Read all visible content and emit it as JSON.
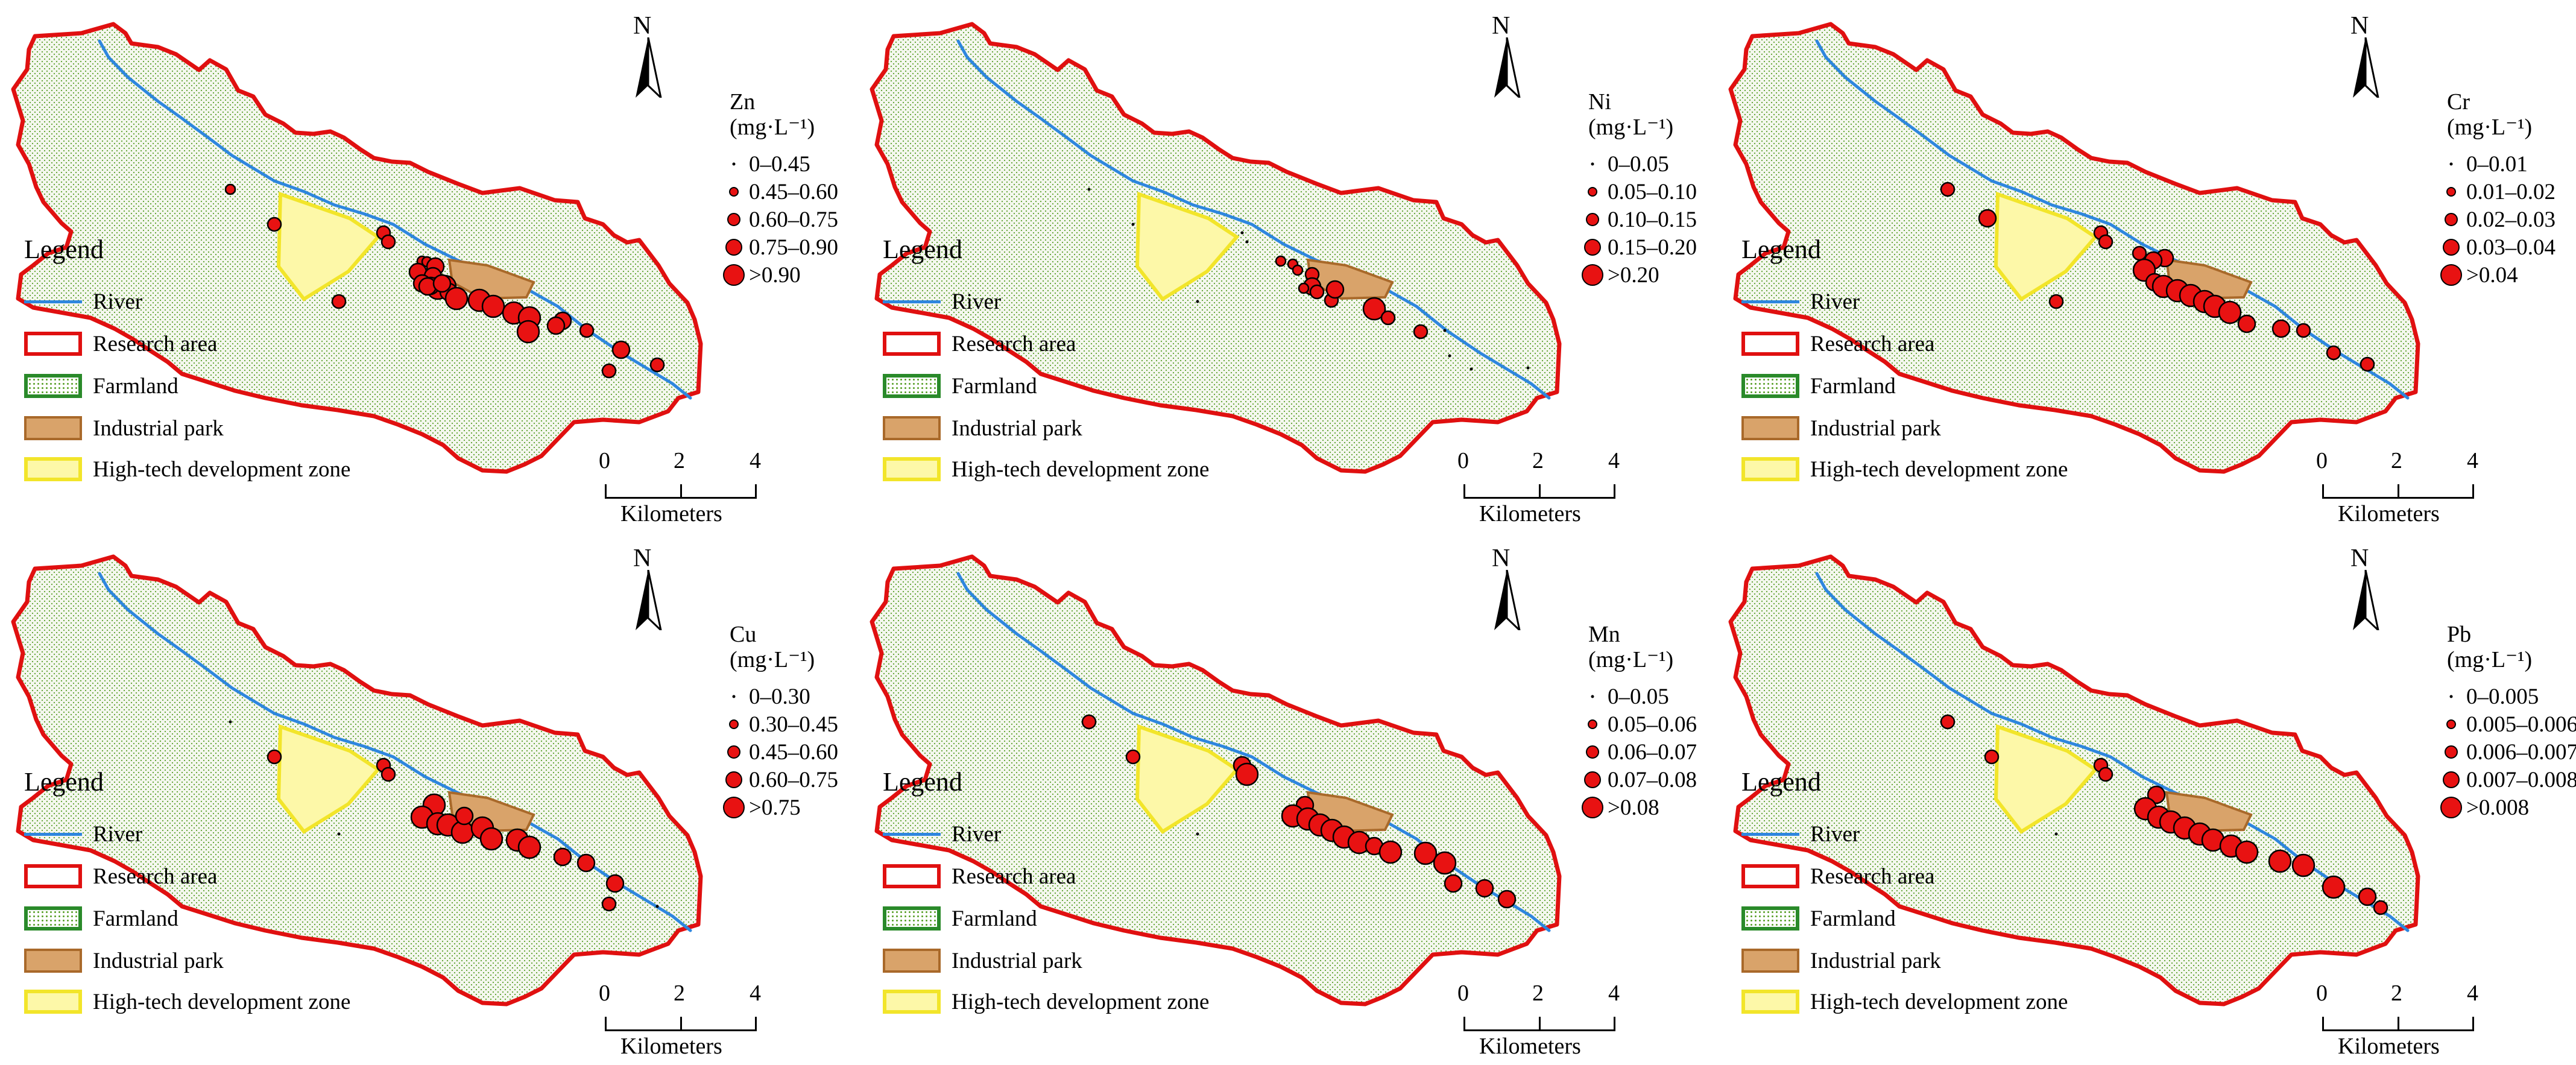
{
  "legend": {
    "title": "Legend",
    "items": [
      {
        "key": "river",
        "label": "River"
      },
      {
        "key": "research",
        "label": "Research area"
      },
      {
        "key": "farm",
        "label": "Farmland"
      },
      {
        "key": "ind",
        "label": "Industrial park"
      },
      {
        "key": "hitech",
        "label": "High-tech development zone"
      }
    ]
  },
  "north_label": "N",
  "scale": {
    "ticks": [
      "0",
      "2",
      "4"
    ],
    "unit": "Kilometers"
  },
  "unit_label": "(mg·L⁻¹)",
  "colors": {
    "river": "#2e86de",
    "boundary": "#e01010",
    "farmland": "#5aa02a",
    "industrial": "#d9a36a",
    "hitech": "#fdf8a8",
    "sample": "#e81212"
  },
  "panels": [
    {
      "element": "Zn",
      "classes": [
        "0–0.45",
        "0.45–0.60",
        "0.60–0.75",
        "0.75–0.90",
        ">0.90"
      ]
    },
    {
      "element": "Ni",
      "classes": [
        "0–0.05",
        "0.05–0.10",
        "0.10–0.15",
        "0.15–0.20",
        ">0.20"
      ]
    },
    {
      "element": "Cr",
      "classes": [
        "0–0.01",
        "0.01–0.02",
        "0.02–0.03",
        "0.03–0.04",
        ">0.04"
      ]
    },
    {
      "element": "Cu",
      "classes": [
        "0–0.30",
        "0.30–0.45",
        "0.45–0.60",
        "0.60–0.75",
        ">0.75"
      ]
    },
    {
      "element": "Mn",
      "classes": [
        "0–0.05",
        "0.05–0.06",
        "0.06–0.07",
        "0.07–0.08",
        ">0.08"
      ]
    },
    {
      "element": "Pb",
      "classes": [
        "0–0.005",
        "0.005–0.006",
        "0.006–0.007",
        "0.007–0.008",
        ">0.008"
      ]
    }
  ]
}
